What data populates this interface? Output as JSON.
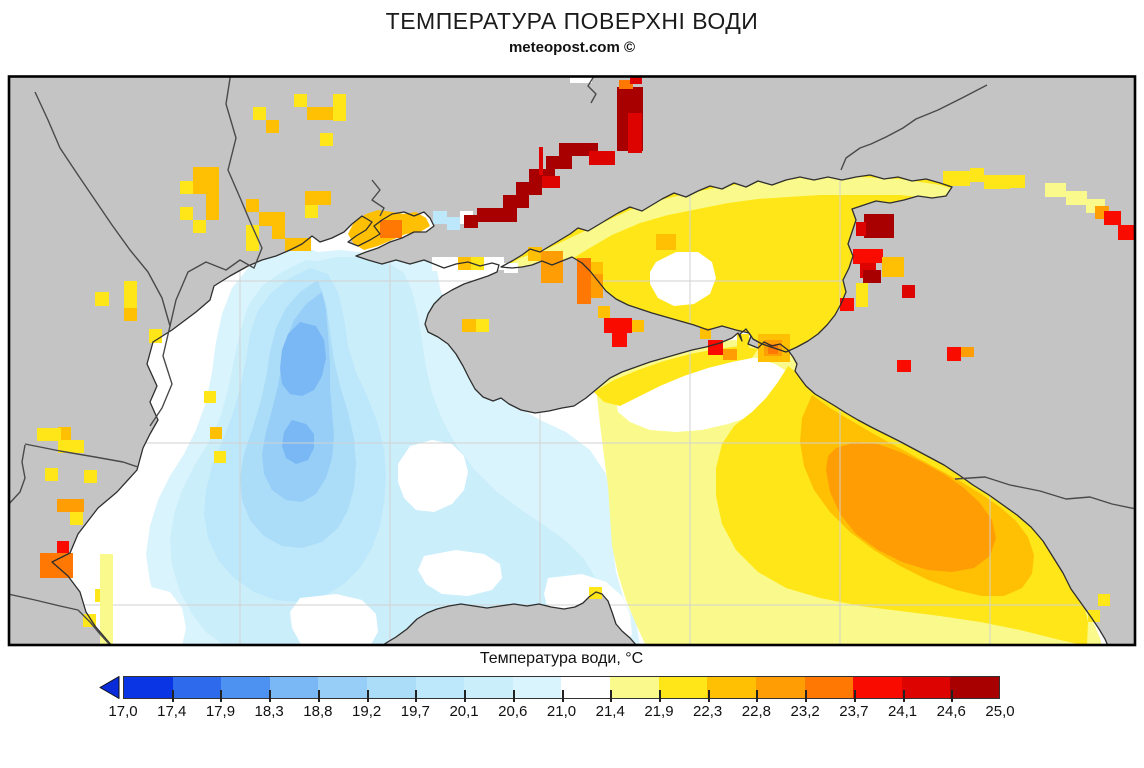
{
  "title": "ТЕМПЕРАТУРА ПОВЕРХНІ ВОДИ",
  "subtitle": "meteopost.com ©",
  "colorbar": {
    "label": "Температура води, °С",
    "ticks": [
      "17,0",
      "17,4",
      "17,9",
      "18,3",
      "18,8",
      "19,2",
      "19,7",
      "20,1",
      "20,6",
      "21,0",
      "21,4",
      "21,9",
      "22,3",
      "22,8",
      "23,2",
      "23,7",
      "24,1",
      "24,6",
      "25,0"
    ],
    "segment_colors": [
      "#0A35E5",
      "#2E6BEC",
      "#4E92F1",
      "#79B7F5",
      "#97CEF7",
      "#ABDCF8",
      "#BDE7FA",
      "#CBEEFB",
      "#D9F4FC",
      "#FFFFFF",
      "#FAFA8C",
      "#FFE619",
      "#FFC003",
      "#FF9D05",
      "#FF7803",
      "#F90B00",
      "#DC0300",
      "#A80000"
    ],
    "arrow_color": "#0A2BD8"
  },
  "map": {
    "land_color": "#C4C4C4",
    "sea_base_color": "#FFFFFF",
    "coastline_color": "#2E2E2E",
    "border_color": "#4A4A4A",
    "graticule_color": "#D2D2D2",
    "frame_color": "#000000"
  }
}
